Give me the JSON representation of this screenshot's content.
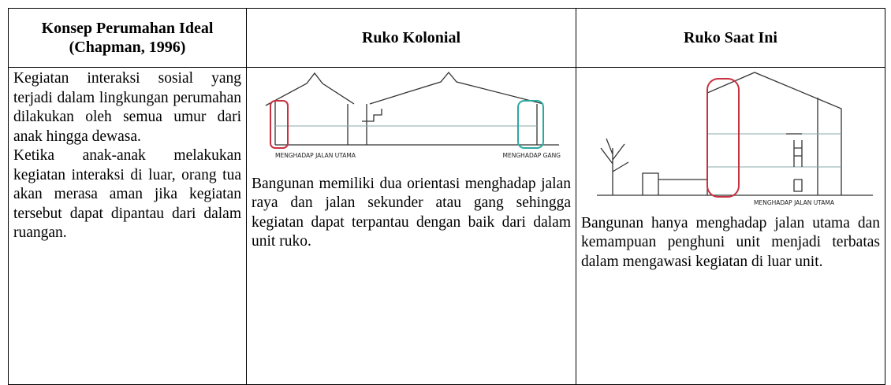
{
  "table": {
    "headers": [
      "Konsep Perumahan Ideal (Chapman, 1996)",
      "Ruko Kolonial",
      "Ruko Saat Ini"
    ],
    "rows": [
      [
        {
          "paragraphs": [
            "Kegiatan interaksi sosial yang terjadi dalam lingkungan perumahan dilakukan oleh semua umur dari anak hingga dewasa.",
            "Ketika anak-anak melakukan kegiatan interaksi di luar, orang tua akan merasa aman jika kegiatan tersebut dapat dipantau dari dalam ruangan."
          ]
        },
        {
          "image_labels": [
            "MENGHADAP JALAN UTAMA",
            "MENGHADAP GANG"
          ],
          "caption": "Bangunan memiliki dua orientasi menghadap jalan raya dan jalan sekunder atau gang sehingga kegiatan dapat terpantau dengan baik dari dalam unit ruko."
        },
        {
          "image_labels": [
            "MENGHADAP JALAN UTAMA"
          ],
          "caption": "Bangunan hanya menghadap jalan utama dan kemampuan penghuni unit menjadi terbatas dalam mengawasi kegiatan di luar unit."
        }
      ]
    ]
  }
}
